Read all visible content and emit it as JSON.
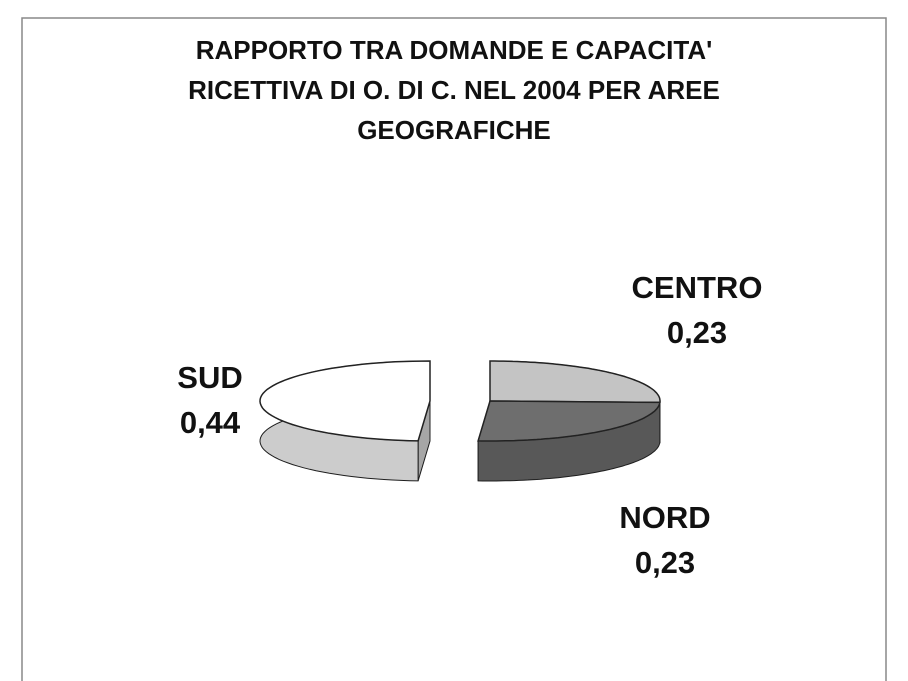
{
  "chart_data": {
    "type": "pie",
    "title": "RAPPORTO TRA DOMANDE E CAPACITA' RICETTIVA DI O. DI C. NEL 2004 PER AREE GEOGRAFICHE",
    "categories": [
      "CENTRO",
      "NORD",
      "SUD"
    ],
    "values": [
      0.23,
      0.23,
      0.44
    ],
    "value_labels": [
      "0,23",
      "0,23",
      "0,44"
    ],
    "colors": [
      "#c4c4c4",
      "#6e6e6e",
      "#ffffff"
    ]
  }
}
